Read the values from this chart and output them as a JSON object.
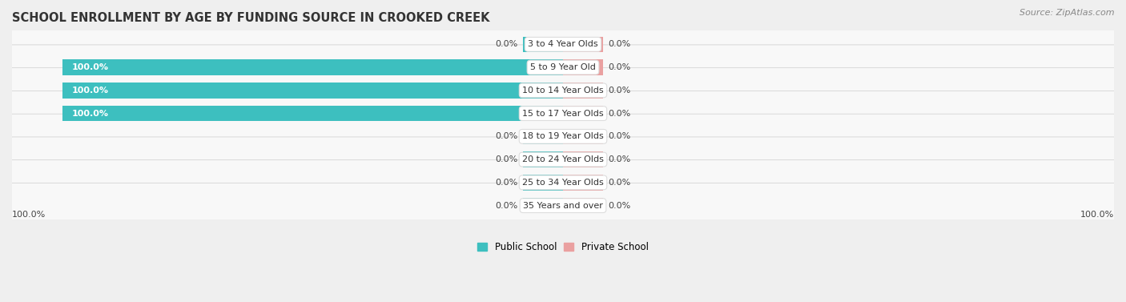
{
  "title": "SCHOOL ENROLLMENT BY AGE BY FUNDING SOURCE IN CROOKED CREEK",
  "source": "Source: ZipAtlas.com",
  "categories": [
    "3 to 4 Year Olds",
    "5 to 9 Year Old",
    "10 to 14 Year Olds",
    "15 to 17 Year Olds",
    "18 to 19 Year Olds",
    "20 to 24 Year Olds",
    "25 to 34 Year Olds",
    "35 Years and over"
  ],
  "public_values": [
    0.0,
    100.0,
    100.0,
    100.0,
    0.0,
    0.0,
    0.0,
    0.0
  ],
  "private_values": [
    0.0,
    0.0,
    0.0,
    0.0,
    0.0,
    0.0,
    0.0,
    0.0
  ],
  "public_color": "#3DBFBF",
  "private_color": "#EAA0A0",
  "bg_color": "#efefef",
  "row_bg_color": "#f8f8f8",
  "row_alt_color": "#f0f0f0",
  "label_bg_color": "#ffffff",
  "title_fontsize": 10.5,
  "label_fontsize": 8,
  "tick_fontsize": 8,
  "source_fontsize": 8,
  "min_bar_width": 8.0,
  "legend_public": "Public School",
  "legend_private": "Private School",
  "bottom_left_label": "100.0%",
  "bottom_right_label": "100.0%"
}
